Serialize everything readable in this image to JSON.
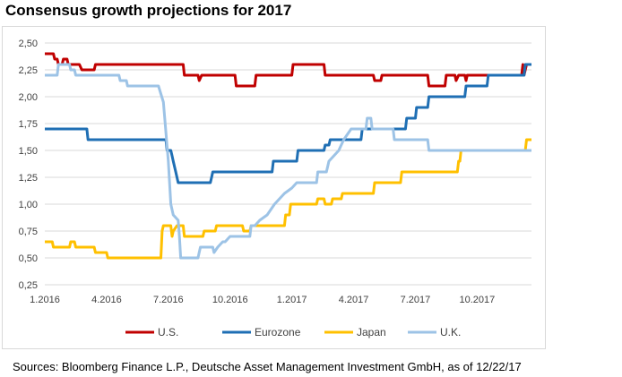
{
  "title": "Consensus growth projections for 2017",
  "source": "Sources: Bloomberg Finance L.P., Deutsche Asset Management Investment GmbH, as of 12/22/17",
  "chart_data": {
    "type": "line",
    "title": "Consensus growth projections for 2017",
    "xlabel": "",
    "ylabel": "",
    "x_ticks": [
      "1.2016",
      "4.2016",
      "7.2016",
      "10.2016",
      "1.2017",
      "4.2017",
      "7.2017",
      "10.2017"
    ],
    "y_ticks": [
      "0,25",
      "0,50",
      "0,75",
      "1,00",
      "1,25",
      "1,50",
      "1,75",
      "2,00",
      "2,25",
      "2,50"
    ],
    "xlim": [
      2016.0,
      2017.97
    ],
    "ylim": [
      0.25,
      2.5
    ],
    "grid": "horizontal",
    "legend_position": "bottom",
    "series": [
      {
        "name": "U.S.",
        "color": "#c00000",
        "points": [
          [
            2016.0,
            2.4
          ],
          [
            2016.035,
            2.4
          ],
          [
            2016.04,
            2.35
          ],
          [
            2016.05,
            2.35
          ],
          [
            2016.055,
            2.3
          ],
          [
            2016.07,
            2.3
          ],
          [
            2016.075,
            2.35
          ],
          [
            2016.09,
            2.35
          ],
          [
            2016.095,
            2.3
          ],
          [
            2016.14,
            2.3
          ],
          [
            2016.15,
            2.25
          ],
          [
            2016.2,
            2.25
          ],
          [
            2016.205,
            2.3
          ],
          [
            2016.56,
            2.3
          ],
          [
            2016.565,
            2.2
          ],
          [
            2016.62,
            2.2
          ],
          [
            2016.625,
            2.15
          ],
          [
            2016.635,
            2.2
          ],
          [
            2016.77,
            2.2
          ],
          [
            2016.775,
            2.1
          ],
          [
            2016.85,
            2.1
          ],
          [
            2016.855,
            2.2
          ],
          [
            2017.0,
            2.2
          ],
          [
            2017.005,
            2.3
          ],
          [
            2017.13,
            2.3
          ],
          [
            2017.135,
            2.2
          ],
          [
            2017.33,
            2.2
          ],
          [
            2017.335,
            2.15
          ],
          [
            2017.36,
            2.15
          ],
          [
            2017.365,
            2.2
          ],
          [
            2017.55,
            2.2
          ],
          [
            2017.555,
            2.1
          ],
          [
            2017.62,
            2.1
          ],
          [
            2017.625,
            2.2
          ],
          [
            2017.66,
            2.2
          ],
          [
            2017.665,
            2.15
          ],
          [
            2017.675,
            2.2
          ],
          [
            2017.7,
            2.2
          ],
          [
            2017.705,
            2.15
          ],
          [
            2017.71,
            2.2
          ],
          [
            2017.93,
            2.2
          ],
          [
            2017.935,
            2.3
          ],
          [
            2017.94,
            2.2
          ],
          [
            2017.95,
            2.3
          ]
        ]
      },
      {
        "name": "Eurozone",
        "color": "#1f6fb4",
        "points": [
          [
            2016.0,
            1.7
          ],
          [
            2016.17,
            1.7
          ],
          [
            2016.175,
            1.6
          ],
          [
            2016.49,
            1.6
          ],
          [
            2016.495,
            1.5
          ],
          [
            2016.51,
            1.5
          ],
          [
            2016.515,
            1.45
          ],
          [
            2016.52,
            1.4
          ],
          [
            2016.53,
            1.3
          ],
          [
            2016.54,
            1.2
          ],
          [
            2016.67,
            1.2
          ],
          [
            2016.675,
            1.25
          ],
          [
            2016.68,
            1.3
          ],
          [
            2016.92,
            1.3
          ],
          [
            2016.925,
            1.4
          ],
          [
            2017.02,
            1.4
          ],
          [
            2017.025,
            1.5
          ],
          [
            2017.13,
            1.5
          ],
          [
            2017.135,
            1.55
          ],
          [
            2017.15,
            1.55
          ],
          [
            2017.155,
            1.6
          ],
          [
            2017.28,
            1.6
          ],
          [
            2017.285,
            1.7
          ],
          [
            2017.46,
            1.7
          ],
          [
            2017.465,
            1.8
          ],
          [
            2017.5,
            1.8
          ],
          [
            2017.505,
            1.9
          ],
          [
            2017.55,
            1.9
          ],
          [
            2017.555,
            2.0
          ],
          [
            2017.7,
            2.0
          ],
          [
            2017.705,
            2.1
          ],
          [
            2017.79,
            2.1
          ],
          [
            2017.795,
            2.2
          ],
          [
            2017.94,
            2.2
          ],
          [
            2017.945,
            2.3
          ],
          [
            2017.97,
            2.3
          ]
        ]
      },
      {
        "name": "Japan",
        "color": "#ffc000",
        "points": [
          [
            2016.0,
            0.65
          ],
          [
            2016.03,
            0.65
          ],
          [
            2016.035,
            0.6
          ],
          [
            2016.1,
            0.6
          ],
          [
            2016.105,
            0.65
          ],
          [
            2016.12,
            0.65
          ],
          [
            2016.125,
            0.6
          ],
          [
            2016.2,
            0.6
          ],
          [
            2016.205,
            0.55
          ],
          [
            2016.25,
            0.55
          ],
          [
            2016.255,
            0.5
          ],
          [
            2016.47,
            0.5
          ],
          [
            2016.475,
            0.75
          ],
          [
            2016.48,
            0.8
          ],
          [
            2016.51,
            0.8
          ],
          [
            2016.515,
            0.7
          ],
          [
            2016.52,
            0.75
          ],
          [
            2016.535,
            0.8
          ],
          [
            2016.56,
            0.8
          ],
          [
            2016.565,
            0.7
          ],
          [
            2016.64,
            0.7
          ],
          [
            2016.645,
            0.75
          ],
          [
            2016.69,
            0.75
          ],
          [
            2016.695,
            0.8
          ],
          [
            2016.8,
            0.8
          ],
          [
            2016.805,
            0.75
          ],
          [
            2016.83,
            0.75
          ],
          [
            2016.835,
            0.8
          ],
          [
            2016.97,
            0.8
          ],
          [
            2016.975,
            0.9
          ],
          [
            2016.99,
            0.9
          ],
          [
            2016.995,
            1.0
          ],
          [
            2017.1,
            1.0
          ],
          [
            2017.105,
            1.05
          ],
          [
            2017.13,
            1.05
          ],
          [
            2017.135,
            1.0
          ],
          [
            2017.16,
            1.0
          ],
          [
            2017.165,
            1.05
          ],
          [
            2017.2,
            1.05
          ],
          [
            2017.205,
            1.1
          ],
          [
            2017.33,
            1.1
          ],
          [
            2017.335,
            1.2
          ],
          [
            2017.44,
            1.2
          ],
          [
            2017.445,
            1.3
          ],
          [
            2017.67,
            1.3
          ],
          [
            2017.675,
            1.4
          ],
          [
            2017.68,
            1.4
          ],
          [
            2017.685,
            1.5
          ],
          [
            2017.945,
            1.5
          ],
          [
            2017.95,
            1.6
          ],
          [
            2017.97,
            1.6
          ]
        ]
      },
      {
        "name": "U.K.",
        "color": "#9dc3e6",
        "points": [
          [
            2016.0,
            2.2
          ],
          [
            2016.05,
            2.2
          ],
          [
            2016.055,
            2.3
          ],
          [
            2016.1,
            2.3
          ],
          [
            2016.105,
            2.25
          ],
          [
            2016.12,
            2.25
          ],
          [
            2016.125,
            2.2
          ],
          [
            2016.3,
            2.2
          ],
          [
            2016.305,
            2.15
          ],
          [
            2016.33,
            2.15
          ],
          [
            2016.335,
            2.1
          ],
          [
            2016.46,
            2.1
          ],
          [
            2016.48,
            1.95
          ],
          [
            2016.5,
            1.4
          ],
          [
            2016.51,
            1.0
          ],
          [
            2016.52,
            0.9
          ],
          [
            2016.54,
            0.85
          ],
          [
            2016.545,
            0.7
          ],
          [
            2016.55,
            0.5
          ],
          [
            2016.62,
            0.5
          ],
          [
            2016.63,
            0.6
          ],
          [
            2016.68,
            0.6
          ],
          [
            2016.685,
            0.55
          ],
          [
            2016.7,
            0.6
          ],
          [
            2016.72,
            0.65
          ],
          [
            2016.73,
            0.65
          ],
          [
            2016.75,
            0.7
          ],
          [
            2016.83,
            0.7
          ],
          [
            2016.835,
            0.8
          ],
          [
            2016.85,
            0.8
          ],
          [
            2016.87,
            0.85
          ],
          [
            2016.9,
            0.9
          ],
          [
            2016.93,
            1.0
          ],
          [
            2016.97,
            1.1
          ],
          [
            2017.0,
            1.15
          ],
          [
            2017.02,
            1.2
          ],
          [
            2017.1,
            1.2
          ],
          [
            2017.105,
            1.3
          ],
          [
            2017.14,
            1.3
          ],
          [
            2017.15,
            1.4
          ],
          [
            2017.19,
            1.5
          ],
          [
            2017.21,
            1.6
          ],
          [
            2017.24,
            1.7
          ],
          [
            2017.3,
            1.7
          ],
          [
            2017.305,
            1.8
          ],
          [
            2017.32,
            1.8
          ],
          [
            2017.325,
            1.7
          ],
          [
            2017.41,
            1.7
          ],
          [
            2017.415,
            1.6
          ],
          [
            2017.55,
            1.6
          ],
          [
            2017.555,
            1.5
          ],
          [
            2017.97,
            1.5
          ]
        ]
      }
    ]
  }
}
